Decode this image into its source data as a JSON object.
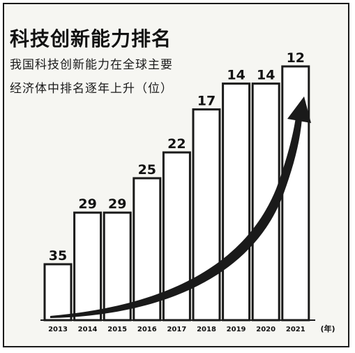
{
  "chart_data": {
    "type": "bar",
    "title": "科技创新能力排名",
    "subtitle_lines": [
      "我国科技创新能力在全球主要",
      "经济体中排名逐年上升（位）"
    ],
    "categories": [
      "2013",
      "2014",
      "2015",
      "2016",
      "2017",
      "2018",
      "2019",
      "2020",
      "2021"
    ],
    "values": [
      35,
      29,
      29,
      25,
      22,
      17,
      14,
      14,
      12
    ],
    "x_unit": "(年)",
    "reversed_scale": true,
    "trend_arrow": true,
    "colors": {
      "bar_fill": "#ffffff",
      "bar_stroke": "#1a1a1a",
      "arrow": "#1a1a1a",
      "text": "#111111",
      "background": "#f6f6f2"
    }
  }
}
